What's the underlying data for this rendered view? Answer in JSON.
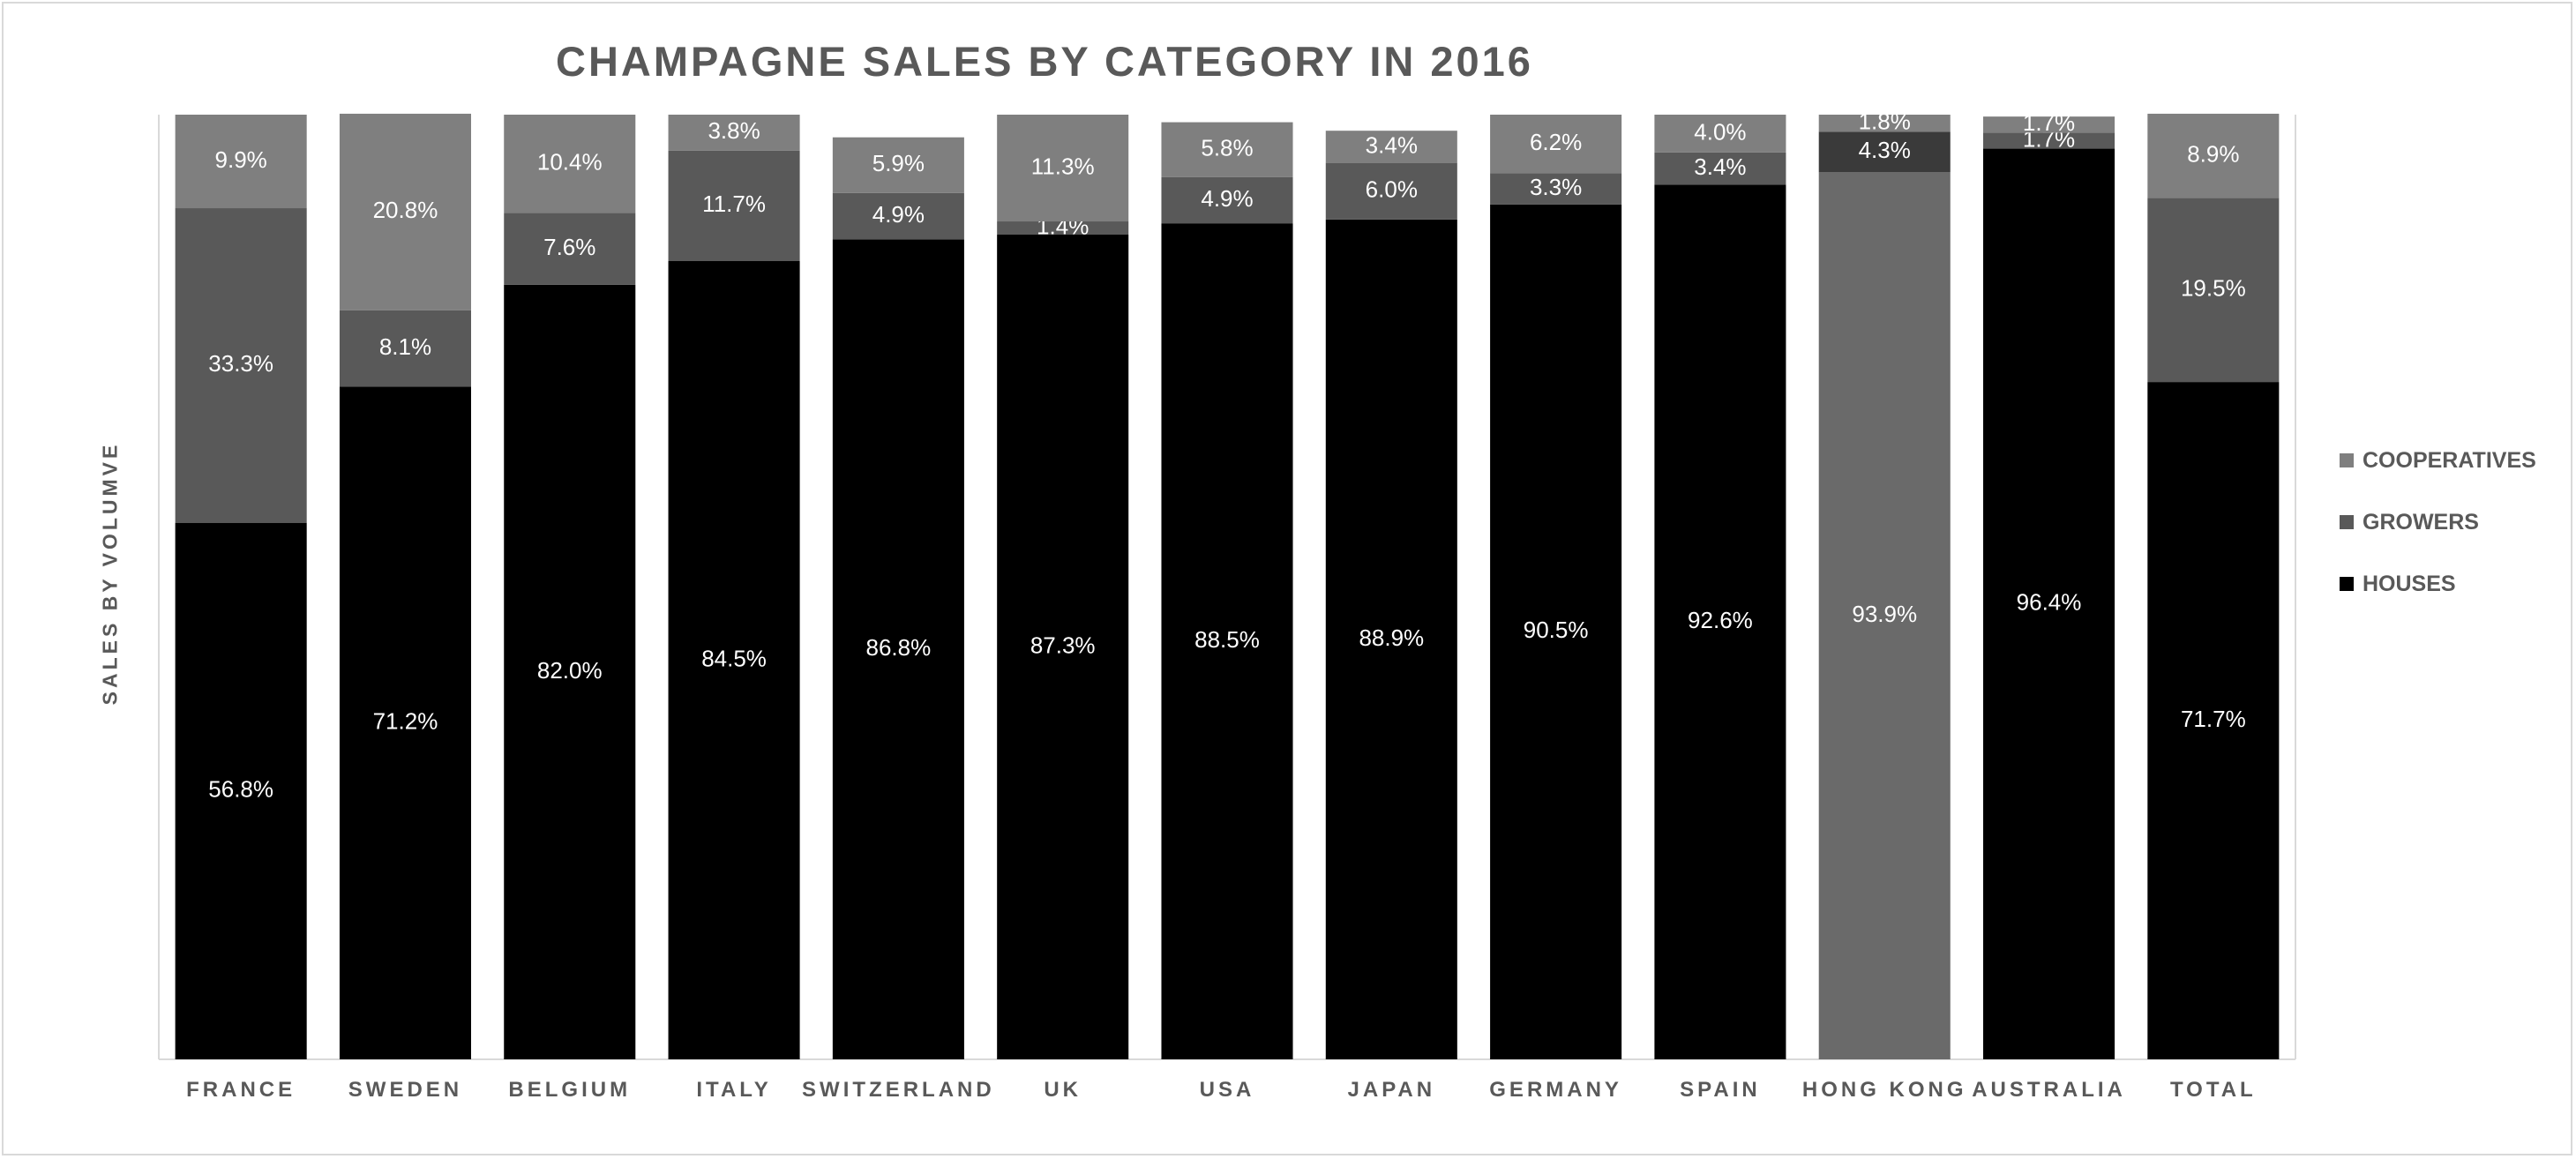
{
  "chart_data": {
    "type": "bar",
    "stacked": true,
    "title": "CHAMPAGNE SALES BY CATEGORY IN 2016",
    "ylabel": "SALES BY VOLUMVE",
    "xlabel": "",
    "ylim": [
      0,
      100
    ],
    "grid": false,
    "legend_position": "right",
    "categories": [
      "FRANCE",
      "SWEDEN",
      "BELGIUM",
      "ITALY",
      "SWITZERLAND",
      "UK",
      "USA",
      "JAPAN",
      "GERMANY",
      "SPAIN",
      "HONG KONG",
      "AUSTRALIA",
      "TOTAL"
    ],
    "series": [
      {
        "name": "HOUSES",
        "color": "#000000",
        "values": [
          56.8,
          71.2,
          82.0,
          84.5,
          86.8,
          87.3,
          88.5,
          88.9,
          90.5,
          92.6,
          93.9,
          96.4,
          71.7
        ],
        "labels": [
          "56.8%",
          "71.2%",
          "82.0%",
          "84.5%",
          "86.8%",
          "87.3%",
          "88.5%",
          "88.9%",
          "90.5%",
          "92.6%",
          "93.9%",
          "96.4%",
          "71.7%"
        ]
      },
      {
        "name": "GROWERS",
        "color": "#595959",
        "values": [
          33.3,
          8.1,
          7.6,
          11.7,
          4.9,
          1.4,
          4.9,
          6.0,
          3.3,
          3.4,
          4.3,
          1.7,
          19.5
        ],
        "labels": [
          "33.3%",
          "8.1%",
          "7.6%",
          "11.7%",
          "4.9%",
          "1.4%",
          "4.9%",
          "6.0%",
          "3.3%",
          "3.4%",
          "4.3%",
          "1.7%",
          "19.5%"
        ]
      },
      {
        "name": "COOPERATIVES",
        "color": "#7f7f7f",
        "values": [
          9.9,
          20.8,
          10.4,
          3.8,
          5.9,
          11.3,
          5.8,
          3.4,
          6.2,
          4.0,
          1.8,
          1.7,
          8.9
        ],
        "labels": [
          "9.9%",
          "20.8%",
          "10.4%",
          "3.8%",
          "5.9%",
          "11.3%",
          "5.8%",
          "3.4%",
          "6.2%",
          "4.0%",
          "1.8%",
          "1.7%",
          "8.9%"
        ]
      }
    ],
    "bar_overrides": [
      {
        "category": "HONG KONG",
        "series": "HOUSES",
        "color": "#6a6a6a"
      },
      {
        "category": "HONG KONG",
        "series": "GROWERS",
        "color": "#3a3a3a"
      }
    ],
    "legend_order": [
      "COOPERATIVES",
      "GROWERS",
      "HOUSES"
    ]
  }
}
